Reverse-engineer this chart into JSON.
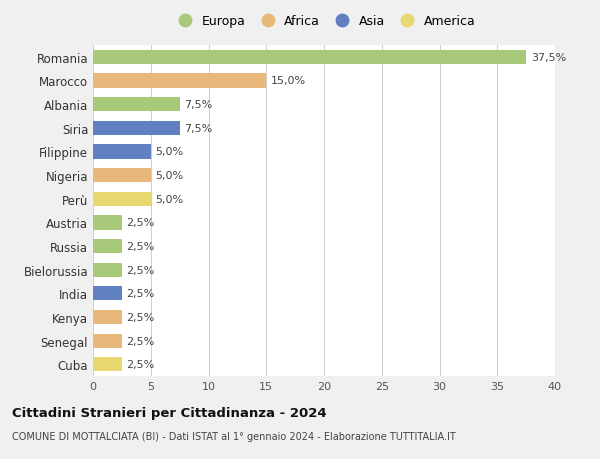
{
  "countries": [
    "Romania",
    "Marocco",
    "Albania",
    "Siria",
    "Filippine",
    "Nigeria",
    "Perù",
    "Austria",
    "Russia",
    "Bielorussia",
    "India",
    "Kenya",
    "Senegal",
    "Cuba"
  ],
  "values": [
    37.5,
    15.0,
    7.5,
    7.5,
    5.0,
    5.0,
    5.0,
    2.5,
    2.5,
    2.5,
    2.5,
    2.5,
    2.5,
    2.5
  ],
  "labels": [
    "37,5%",
    "15,0%",
    "7,5%",
    "7,5%",
    "5,0%",
    "5,0%",
    "5,0%",
    "2,5%",
    "2,5%",
    "2,5%",
    "2,5%",
    "2,5%",
    "2,5%",
    "2,5%"
  ],
  "continents": [
    "Europa",
    "Africa",
    "Europa",
    "Asia",
    "Asia",
    "Africa",
    "America",
    "Europa",
    "Europa",
    "Europa",
    "Asia",
    "Africa",
    "Africa",
    "America"
  ],
  "colors": {
    "Europa": "#a8c87a",
    "Africa": "#e8b87a",
    "Asia": "#6080c0",
    "America": "#e8d870"
  },
  "legend_order": [
    "Europa",
    "Africa",
    "Asia",
    "America"
  ],
  "title": "Cittadini Stranieri per Cittadinanza - 2024",
  "subtitle": "COMUNE DI MOTTALCIATA (BI) - Dati ISTAT al 1° gennaio 2024 - Elaborazione TUTTITALIA.IT",
  "xlim": [
    0,
    40
  ],
  "xticks": [
    0,
    5,
    10,
    15,
    20,
    25,
    30,
    35,
    40
  ],
  "background_color": "#f0f0f0",
  "bar_background": "#ffffff",
  "grid_color": "#cccccc"
}
